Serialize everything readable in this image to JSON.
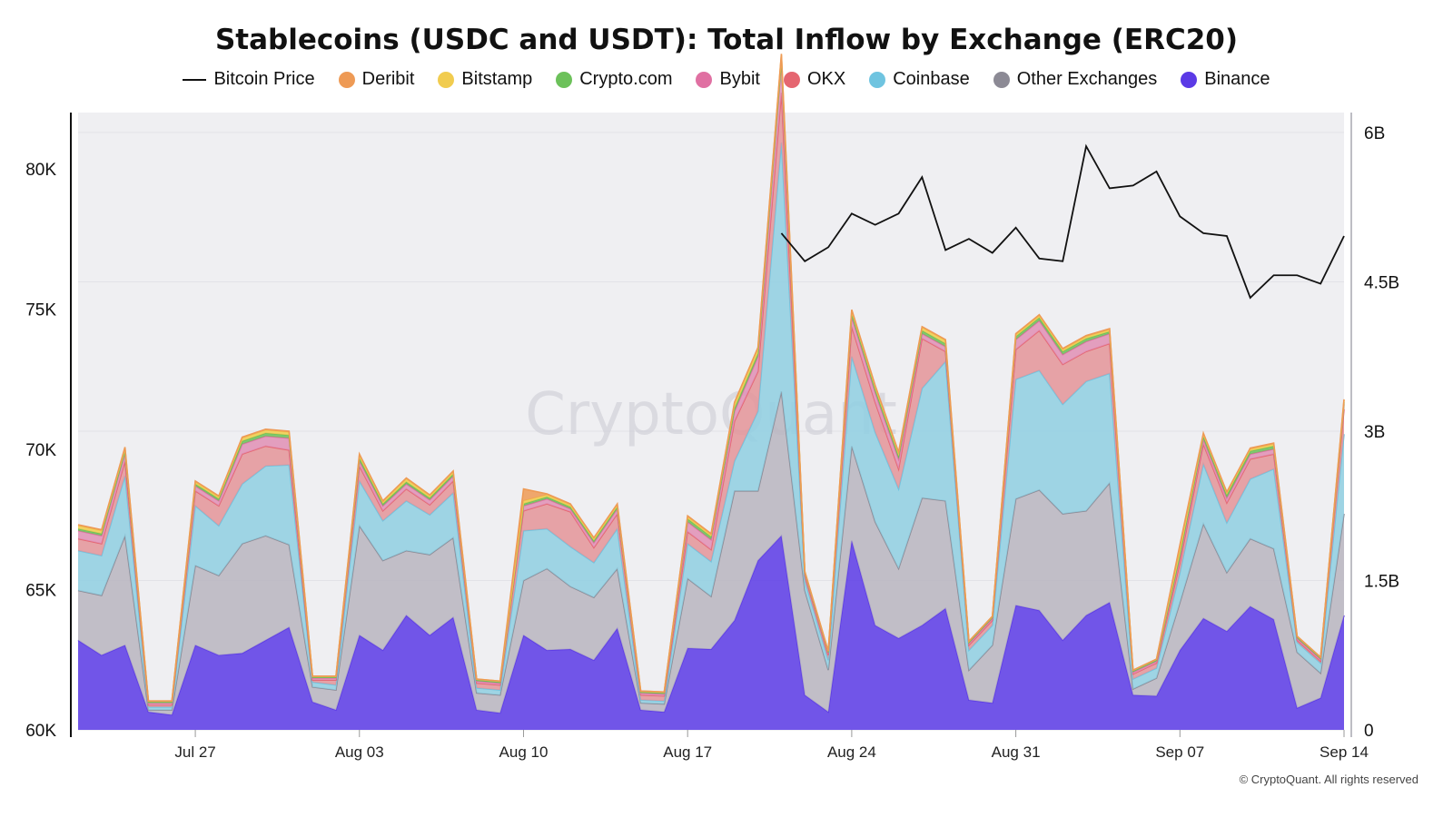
{
  "title": "Stablecoins (USDC and USDT): Total Inflow by Exchange (ERC20)",
  "watermark": "CryptoQuant",
  "credit": "© CryptoQuant. All rights reserved",
  "legend": [
    {
      "label": "Bitcoin Price",
      "kind": "line",
      "color": "#111111"
    },
    {
      "label": "Deribit",
      "kind": "dot",
      "color": "#ee9a55"
    },
    {
      "label": "Bitstamp",
      "kind": "dot",
      "color": "#f1cc4f"
    },
    {
      "label": "Crypto.com",
      "kind": "dot",
      "color": "#6cc15a"
    },
    {
      "label": "Bybit",
      "kind": "dot",
      "color": "#e070a2"
    },
    {
      "label": "OKX",
      "kind": "dot",
      "color": "#e56670"
    },
    {
      "label": "Coinbase",
      "kind": "dot",
      "color": "#6fc4e0"
    },
    {
      "label": "Other Exchanges",
      "kind": "dot",
      "color": "#8c8a95"
    },
    {
      "label": "Binance",
      "kind": "dot",
      "color": "#5b3ae6"
    }
  ],
  "chart_data": {
    "type": "area",
    "stacked": true,
    "x_tick_labels": [
      "Jul 27",
      "Aug 03",
      "Aug 10",
      "Aug 17",
      "Aug 24",
      "Aug 31",
      "Sep 07",
      "Sep 14"
    ],
    "y_left_ticks": [
      "60K",
      "65K",
      "70K",
      "75K",
      "80K"
    ],
    "y_left_range": [
      60000,
      82000
    ],
    "y_right_ticks": [
      "0",
      "1.5B",
      "3B",
      "4.5B",
      "6B"
    ],
    "y_right_range": [
      0,
      6200000000
    ],
    "grid": true,
    "legend_position": "top-center",
    "x": [
      "Jul 22",
      "Jul 23",
      "Jul 24",
      "Jul 25",
      "Jul 26",
      "Jul 27",
      "Jul 28",
      "Jul 29",
      "Jul 30",
      "Jul 31",
      "Aug 01",
      "Aug 02",
      "Aug 03",
      "Aug 04",
      "Aug 05",
      "Aug 06",
      "Aug 07",
      "Aug 08",
      "Aug 09",
      "Aug 10",
      "Aug 11",
      "Aug 12",
      "Aug 13",
      "Aug 14",
      "Aug 15",
      "Aug 16",
      "Aug 17",
      "Aug 18",
      "Aug 19",
      "Aug 20",
      "Aug 21",
      "Aug 22",
      "Aug 23",
      "Aug 24",
      "Aug 25",
      "Aug 26",
      "Aug 27",
      "Aug 28",
      "Aug 29",
      "Aug 30",
      "Aug 31",
      "Sep 01",
      "Sep 02",
      "Sep 03",
      "Sep 04",
      "Sep 05",
      "Sep 06",
      "Sep 07",
      "Sep 08",
      "Sep 09",
      "Sep 10",
      "Sep 11",
      "Sep 12",
      "Sep 13",
      "Sep 14"
    ],
    "bitcoin_price": [
      null,
      null,
      null,
      null,
      null,
      null,
      null,
      null,
      null,
      null,
      null,
      null,
      null,
      null,
      null,
      null,
      null,
      null,
      null,
      null,
      null,
      null,
      null,
      null,
      null,
      null,
      null,
      null,
      null,
      null,
      77700,
      76700,
      77200,
      78400,
      78000,
      78400,
      79700,
      77100,
      77500,
      77000,
      77900,
      76800,
      76700,
      80800,
      79300,
      79400,
      79900,
      78300,
      77700,
      77600,
      75400,
      76200,
      76200,
      75900,
      77600
    ],
    "series": [
      {
        "name": "Binance",
        "color": "#5b3ae6",
        "values": [
          0.9,
          0.75,
          0.85,
          0.18,
          0.15,
          0.85,
          0.75,
          0.77,
          0.9,
          1.03,
          0.28,
          0.2,
          0.95,
          0.8,
          1.15,
          0.95,
          1.13,
          0.2,
          0.17,
          0.95,
          0.8,
          0.81,
          0.7,
          1.02,
          0.2,
          0.18,
          0.82,
          0.81,
          1.1,
          1.7,
          1.95,
          0.35,
          0.18,
          1.9,
          1.05,
          0.92,
          1.05,
          1.22,
          0.3,
          0.27,
          1.25,
          1.2,
          0.9,
          1.15,
          1.28,
          0.35,
          0.34,
          0.8,
          1.12,
          0.99,
          1.24,
          1.11,
          0.22,
          0.32,
          1.15
        ]
      },
      {
        "name": "Other Exchanges",
        "color": "#b8b5c0",
        "values": [
          0.5,
          0.6,
          1.1,
          0.02,
          0.05,
          0.8,
          0.8,
          1.1,
          1.05,
          0.83,
          0.15,
          0.2,
          1.1,
          0.9,
          0.65,
          0.81,
          0.8,
          0.17,
          0.18,
          0.55,
          0.82,
          0.63,
          0.63,
          0.6,
          0.07,
          0.08,
          0.7,
          0.53,
          1.3,
          0.7,
          1.45,
          1.05,
          0.42,
          0.95,
          1.04,
          0.7,
          1.28,
          1.08,
          0.3,
          0.58,
          1.07,
          1.21,
          1.27,
          1.05,
          1.2,
          0.06,
          0.18,
          0.48,
          0.95,
          0.59,
          0.68,
          0.71,
          0.56,
          0.25,
          1.02
        ]
      },
      {
        "name": "Coinbase",
        "color": "#8fcfe2",
        "values": [
          0.4,
          0.4,
          0.6,
          0.03,
          0.03,
          0.6,
          0.5,
          0.6,
          0.7,
          0.8,
          0.05,
          0.05,
          0.45,
          0.4,
          0.5,
          0.4,
          0.45,
          0.05,
          0.05,
          0.5,
          0.4,
          0.4,
          0.35,
          0.4,
          0.03,
          0.03,
          0.35,
          0.35,
          0.3,
          0.8,
          2.5,
          0.1,
          0.1,
          0.9,
          0.9,
          0.8,
          1.1,
          1.4,
          0.2,
          0.2,
          1.2,
          1.2,
          1.1,
          1.3,
          1.1,
          0.1,
          0.1,
          0.3,
          0.6,
          0.5,
          0.6,
          0.8,
          0.1,
          0.1,
          0.8
        ]
      },
      {
        "name": "OKX",
        "color": "#e49499",
        "values": [
          0.12,
          0.12,
          0.15,
          0.02,
          0.02,
          0.15,
          0.2,
          0.3,
          0.2,
          0.15,
          0.02,
          0.05,
          0.15,
          0.1,
          0.12,
          0.1,
          0.12,
          0.05,
          0.05,
          0.2,
          0.25,
          0.35,
          0.15,
          0.15,
          0.05,
          0.05,
          0.12,
          0.12,
          0.4,
          0.4,
          0.5,
          0.05,
          0.05,
          0.3,
          0.3,
          0.2,
          0.5,
          0.1,
          0.05,
          0.05,
          0.3,
          0.4,
          0.4,
          0.3,
          0.3,
          0.05,
          0.05,
          0.1,
          0.2,
          0.2,
          0.2,
          0.15,
          0.02,
          0.02,
          0.25
        ]
      },
      {
        "name": "Bybit",
        "color": "#e08fb5",
        "values": [
          0.08,
          0.08,
          0.08,
          0.02,
          0.02,
          0.05,
          0.05,
          0.1,
          0.1,
          0.12,
          0.02,
          0.02,
          0.05,
          0.05,
          0.05,
          0.05,
          0.05,
          0.02,
          0.02,
          0.05,
          0.05,
          0.03,
          0.05,
          0.05,
          0.02,
          0.02,
          0.1,
          0.1,
          0.1,
          0.15,
          0.3,
          0.02,
          0.02,
          0.1,
          0.1,
          0.1,
          0.05,
          0.05,
          0.02,
          0.02,
          0.1,
          0.1,
          0.1,
          0.1,
          0.1,
          0.02,
          0.02,
          0.05,
          0.05,
          0.05,
          0.05,
          0.05,
          0.02,
          0.02,
          0.05
        ]
      },
      {
        "name": "Crypto.com",
        "color": "#6cc15a",
        "values": [
          0.02,
          0.02,
          0.02,
          0.01,
          0.01,
          0.02,
          0.02,
          0.03,
          0.03,
          0.03,
          0.01,
          0.01,
          0.03,
          0.02,
          0.02,
          0.02,
          0.02,
          0.01,
          0.01,
          0.02,
          0.02,
          0.02,
          0.02,
          0.02,
          0.01,
          0.01,
          0.03,
          0.03,
          0.03,
          0.03,
          0.03,
          0.01,
          0.01,
          0.03,
          0.03,
          0.03,
          0.03,
          0.03,
          0.01,
          0.01,
          0.03,
          0.03,
          0.03,
          0.03,
          0.02,
          0.01,
          0.01,
          0.03,
          0.03,
          0.03,
          0.03,
          0.03,
          0.01,
          0.01,
          0.02
        ]
      },
      {
        "name": "Bitstamp",
        "color": "#f1cc4f",
        "values": [
          0.03,
          0.03,
          0.03,
          0.01,
          0.01,
          0.02,
          0.02,
          0.03,
          0.03,
          0.03,
          0.01,
          0.01,
          0.03,
          0.02,
          0.03,
          0.02,
          0.02,
          0.01,
          0.01,
          0.03,
          0.02,
          0.02,
          0.02,
          0.02,
          0.01,
          0.01,
          0.02,
          0.02,
          0.05,
          0.05,
          0.05,
          0.01,
          0.01,
          0.03,
          0.03,
          0.03,
          0.03,
          0.03,
          0.01,
          0.01,
          0.02,
          0.02,
          0.02,
          0.02,
          0.02,
          0.01,
          0.01,
          0.05,
          0.02,
          0.02,
          0.02,
          0.02,
          0.01,
          0.01,
          0.02
        ]
      },
      {
        "name": "Deribit",
        "color": "#ee9a55",
        "values": [
          0.01,
          0.01,
          0.01,
          0.0,
          0.0,
          0.01,
          0.01,
          0.01,
          0.01,
          0.01,
          0.0,
          0.0,
          0.01,
          0.01,
          0.01,
          0.01,
          0.01,
          0.0,
          0.0,
          0.12,
          0.01,
          0.01,
          0.01,
          0.01,
          0.0,
          0.0,
          0.01,
          0.01,
          0.01,
          0.01,
          0.01,
          0.0,
          0.0,
          0.01,
          0.01,
          0.01,
          0.01,
          0.01,
          0.0,
          0.0,
          0.01,
          0.01,
          0.01,
          0.01,
          0.01,
          0.0,
          0.0,
          0.05,
          0.01,
          0.01,
          0.01,
          0.01,
          0.0,
          0.0,
          0.01
        ]
      }
    ],
    "right_axis_unit_scale": 1000000000
  }
}
